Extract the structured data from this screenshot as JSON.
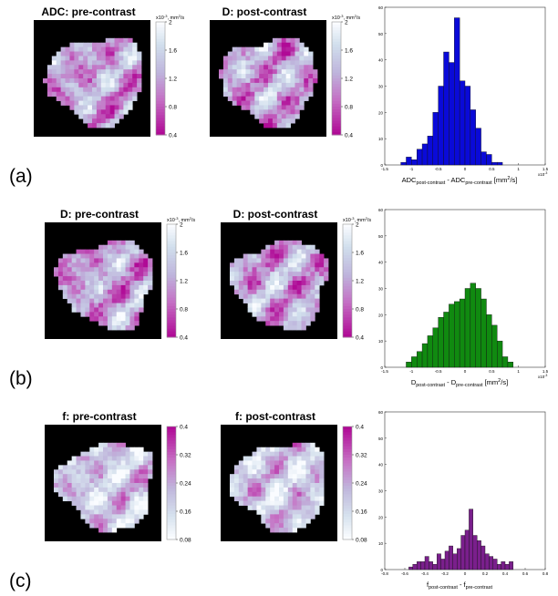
{
  "rows": [
    {
      "panel_label": "(a)",
      "maps": [
        {
          "title": "ADC: pre-contrast",
          "cb_unit_base": "x10",
          "cb_unit_exp": "-3",
          "cb_unit_tail": ", mm",
          "cb_unit_exp2": "2",
          "cb_unit_end": "/s",
          "cb_ticks": [
            "2",
            "1.6",
            "1.2",
            "0.8",
            "0.4"
          ],
          "cb_range": [
            0.4,
            2.0
          ],
          "cb_type": "purple-low"
        },
        {
          "title": "D: post-contrast",
          "cb_unit_base": "x10",
          "cb_unit_exp": "-3",
          "cb_unit_tail": ", mm",
          "cb_unit_exp2": "2",
          "cb_unit_end": "/s",
          "cb_ticks": [
            "2",
            "1.6",
            "1.2",
            "0.8",
            "0.4"
          ],
          "cb_range": [
            0.4,
            2.0
          ],
          "cb_type": "purple-low"
        }
      ],
      "hist": {
        "color": "#0a0ad8",
        "xticks": [
          "-1.5",
          "-1",
          "-0.5",
          "0",
          "0.5",
          "1",
          "1.5"
        ],
        "xrange": [
          -1.5,
          1.5
        ],
        "yticks": [
          "0",
          "10",
          "20",
          "30",
          "40",
          "50",
          "60"
        ],
        "xlabel_main": "ADC",
        "xlabel_sub1": "post-contrast",
        "xlabel_mid": " - ADC",
        "xlabel_sub2": "pre-contrast",
        "xlabel_unit": " [mm",
        "xlabel_unit_exp": "2",
        "xlabel_unit_end": "/s]",
        "xlabel_factor": "x10",
        "xlabel_factor_exp": "-3"
      }
    },
    {
      "panel_label": "(b)",
      "maps": [
        {
          "title": "D: pre-contrast",
          "cb_unit_base": "x10",
          "cb_unit_exp": "-3",
          "cb_unit_tail": ", mm",
          "cb_unit_exp2": "2",
          "cb_unit_end": "/s",
          "cb_ticks": [
            "2",
            "1.6",
            "1.2",
            "0.8",
            "0.4"
          ],
          "cb_range": [
            0.4,
            2.0
          ],
          "cb_type": "purple-low"
        },
        {
          "title": "D: post-contrast",
          "cb_unit_base": "x10",
          "cb_unit_exp": "-3",
          "cb_unit_tail": ", mm",
          "cb_unit_exp2": "2",
          "cb_unit_end": "/s",
          "cb_ticks": [
            "2",
            "1.6",
            "1.2",
            "0.8",
            "0.4"
          ],
          "cb_range": [
            0.4,
            2.0
          ],
          "cb_type": "purple-low"
        }
      ],
      "hist": {
        "color": "#108a10",
        "xticks": [
          "-1.5",
          "-1",
          "-0.5",
          "0",
          "0.5",
          "1",
          "1.5"
        ],
        "xrange": [
          -1.5,
          1.5
        ],
        "yticks": [
          "0",
          "10",
          "20",
          "30",
          "40",
          "50",
          "60"
        ],
        "xlabel_main": "D",
        "xlabel_sub1": "post-contrast",
        "xlabel_mid": " - D",
        "xlabel_sub2": "pre-contrast",
        "xlabel_unit": " [mm",
        "xlabel_unit_exp": "2",
        "xlabel_unit_end": "/s]",
        "xlabel_factor": "x10",
        "xlabel_factor_exp": "-3"
      }
    },
    {
      "panel_label": "(c)",
      "maps": [
        {
          "title": "f: pre-contrast",
          "cb_unit_base": "",
          "cb_unit_exp": "",
          "cb_unit_tail": "",
          "cb_unit_exp2": "",
          "cb_unit_end": "",
          "cb_ticks": [
            "0.4",
            "0.32",
            "0.24",
            "0.16",
            "0.08"
          ],
          "cb_range": [
            0.08,
            0.4
          ],
          "cb_type": "purple-high"
        },
        {
          "title": "f: post-contrast",
          "cb_unit_base": "",
          "cb_unit_exp": "",
          "cb_unit_tail": "",
          "cb_unit_exp2": "",
          "cb_unit_end": "",
          "cb_ticks": [
            "0.4",
            "0.32",
            "0.24",
            "0.16",
            "0.08"
          ],
          "cb_range": [
            0.08,
            0.4
          ],
          "cb_type": "purple-high"
        }
      ],
      "hist": {
        "color": "#7a1f8c",
        "xticks": [
          "-0.8",
          "-0.6",
          "-0.4",
          "-0.2",
          "0",
          "0.2",
          "0.4",
          "0.6",
          "0.8"
        ],
        "xrange": [
          -0.8,
          0.8
        ],
        "yticks": [
          "0",
          "10",
          "20",
          "30",
          "40",
          "50",
          "60"
        ],
        "xlabel_main": "f",
        "xlabel_sub1": "post-contrast",
        "xlabel_mid": " - f",
        "xlabel_sub2": "pre-contrast",
        "xlabel_unit": "",
        "xlabel_unit_exp": "",
        "xlabel_unit_end": "",
        "xlabel_factor": "",
        "xlabel_factor_exp": ""
      }
    }
  ],
  "chart_data": [
    {
      "type": "bar",
      "title": "",
      "xlabel": "ADC post-contrast - ADC pre-contrast [mm2/s] x10-3",
      "ylabel": "",
      "xlim": [
        -1.5,
        1.5
      ],
      "ylim": [
        0,
        60
      ],
      "bin_width": 0.1,
      "x": [
        -1.15,
        -1.05,
        -0.95,
        -0.85,
        -0.75,
        -0.65,
        -0.55,
        -0.45,
        -0.35,
        -0.25,
        -0.15,
        -0.05,
        0.05,
        0.15,
        0.25,
        0.35,
        0.45,
        0.55,
        0.65
      ],
      "values": [
        1,
        3,
        2,
        6,
        8,
        11,
        20,
        30,
        43,
        39,
        56,
        32,
        30,
        21,
        14,
        5,
        4,
        1,
        1
      ]
    },
    {
      "type": "bar",
      "title": "",
      "xlabel": "D post-contrast - D pre-contrast [mm2/s] x10-3",
      "ylabel": "",
      "xlim": [
        -1.5,
        1.5
      ],
      "ylim": [
        0,
        60
      ],
      "bin_width": 0.1,
      "x": [
        -1.05,
        -0.95,
        -0.85,
        -0.75,
        -0.65,
        -0.55,
        -0.45,
        -0.35,
        -0.25,
        -0.15,
        -0.05,
        0.05,
        0.15,
        0.25,
        0.35,
        0.45,
        0.55,
        0.65,
        0.75,
        0.85
      ],
      "values": [
        2,
        4,
        6,
        9,
        12,
        15,
        19,
        21,
        24,
        25,
        26,
        30,
        32,
        30,
        26,
        20,
        16,
        10,
        4,
        2
      ]
    },
    {
      "type": "bar",
      "title": "",
      "xlabel": "f post-contrast - f pre-contrast",
      "ylabel": "",
      "xlim": [
        -0.8,
        0.8
      ],
      "ylim": [
        0,
        60
      ],
      "bin_width": 0.04,
      "x": [
        -0.54,
        -0.5,
        -0.46,
        -0.42,
        -0.38,
        -0.34,
        -0.3,
        -0.26,
        -0.22,
        -0.18,
        -0.14,
        -0.1,
        -0.06,
        -0.02,
        0.02,
        0.06,
        0.1,
        0.14,
        0.18,
        0.22,
        0.26,
        0.3,
        0.34,
        0.38,
        0.42,
        0.46
      ],
      "values": [
        1,
        2,
        3,
        3,
        5,
        3,
        2,
        6,
        4,
        7,
        9,
        6,
        8,
        13,
        15,
        23,
        13,
        11,
        9,
        6,
        5,
        4,
        2,
        3,
        2,
        3
      ]
    }
  ]
}
